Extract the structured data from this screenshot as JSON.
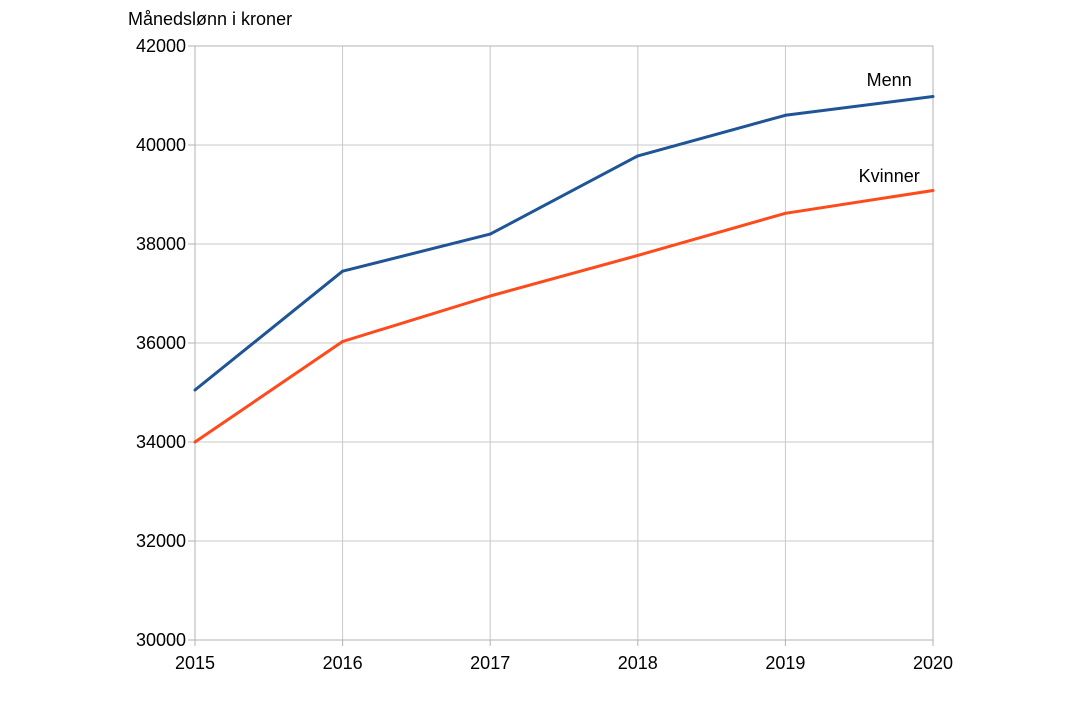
{
  "chart_data": {
    "type": "line",
    "ylabel": "Månedslønn i kroner",
    "xlabel": "",
    "title": "",
    "x": [
      "2015",
      "2016",
      "2017",
      "2018",
      "2019",
      "2020"
    ],
    "ylim": [
      30000,
      42000
    ],
    "yticks": [
      "30000",
      "32000",
      "34000",
      "36000",
      "38000",
      "40000",
      "42000"
    ],
    "grid": true,
    "legend": "inline labels near line ends",
    "series": [
      {
        "name": "Menn",
        "values": [
          35050,
          37450,
          38200,
          39780,
          40600,
          40980
        ],
        "color": "#1f5597"
      },
      {
        "name": "Kvinner",
        "values": [
          34000,
          36030,
          36950,
          37770,
          38620,
          39080
        ],
        "color": "#ff4a1c"
      }
    ]
  }
}
